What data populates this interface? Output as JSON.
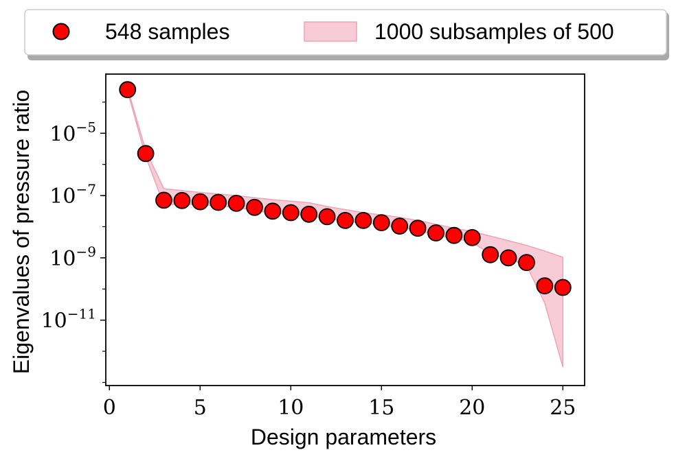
{
  "chart_data": {
    "type": "scatter",
    "title": "",
    "xlabel": "Design parameters",
    "ylabel": "Eigenvalues of pressure ratio",
    "xlim": [
      -0.2,
      26.2
    ],
    "ylim_log10": [
      -13.1,
      -3.1
    ],
    "y_scale": "log",
    "x_ticks": [
      "0",
      "5",
      "10",
      "15",
      "20",
      "25"
    ],
    "x_tick_values": [
      0,
      5,
      10,
      15,
      20,
      25
    ],
    "y_ticks": [
      {
        "value": -5,
        "base": "10",
        "exp": "−5"
      },
      {
        "value": -7,
        "base": "10",
        "exp": "−7"
      },
      {
        "value": -9,
        "base": "10",
        "exp": "−9"
      },
      {
        "value": -11,
        "base": "10",
        "exp": "−11"
      }
    ],
    "grid": false,
    "legend_placement": "top, outside plot",
    "series": [
      {
        "name": "548 samples",
        "kind": "points",
        "color": "#ff0000",
        "edge_color": "#000000",
        "x": [
          1,
          2,
          3,
          4,
          5,
          6,
          7,
          8,
          9,
          10,
          11,
          12,
          13,
          14,
          15,
          16,
          17,
          18,
          19,
          20,
          21,
          22,
          23,
          24,
          25
        ],
        "y_log10": [
          -3.6,
          -5.65,
          -7.15,
          -7.16,
          -7.2,
          -7.22,
          -7.25,
          -7.38,
          -7.5,
          -7.55,
          -7.6,
          -7.68,
          -7.8,
          -7.8,
          -7.87,
          -7.98,
          -8.05,
          -8.2,
          -8.28,
          -8.35,
          -8.9,
          -9.0,
          -9.15,
          -9.9,
          -9.95
        ]
      },
      {
        "name": "1000 subsamples of 500",
        "kind": "band",
        "color": "#f7ccd6",
        "edge_color": "#efa3b5",
        "x": [
          1,
          2,
          3,
          4,
          5,
          6,
          7,
          8,
          9,
          10,
          11,
          12,
          13,
          14,
          15,
          16,
          17,
          18,
          19,
          20,
          21,
          22,
          23,
          24,
          25
        ],
        "upper_log10": [
          -3.55,
          -5.55,
          -6.78,
          -6.84,
          -6.9,
          -6.95,
          -7.0,
          -7.07,
          -7.13,
          -7.18,
          -7.23,
          -7.35,
          -7.45,
          -7.55,
          -7.62,
          -7.7,
          -7.8,
          -7.92,
          -8.05,
          -8.15,
          -8.3,
          -8.45,
          -8.6,
          -8.78,
          -8.98
        ],
        "lower_log10": [
          -3.65,
          -5.75,
          -7.3,
          -7.27,
          -7.3,
          -7.33,
          -7.38,
          -7.48,
          -7.56,
          -7.6,
          -7.66,
          -7.73,
          -7.84,
          -7.86,
          -7.94,
          -8.03,
          -8.12,
          -8.28,
          -8.36,
          -8.5,
          -8.88,
          -9.02,
          -9.25,
          -10.45,
          -12.5
        ]
      }
    ]
  }
}
